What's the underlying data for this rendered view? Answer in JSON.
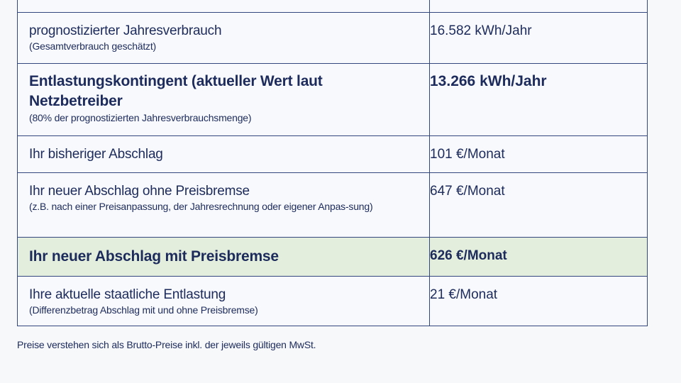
{
  "rows": [
    {
      "label": "prognostizierter Jahresverbrauch",
      "note": "(Gesamtverbrauch geschätzt)",
      "value": "16.582 kWh/Jahr"
    },
    {
      "label": "Entlastungskontingent (aktueller Wert laut Netzbetreiber",
      "note": "(80% der prognostizierten Jahresverbrauchsmenge)",
      "value": "13.266 kWh/Jahr"
    },
    {
      "label": "Ihr bisheriger Abschlag",
      "value": "101 €/Monat"
    },
    {
      "label": "Ihr neuer Abschlag ohne Preisbremse",
      "note": "(z.B. nach einer Preisanpassung, der Jahresrechnung oder eigener Anpas-sung)",
      "value": "647 €/Monat"
    },
    {
      "label": "Ihr neuer Abschlag mit Preisbremse",
      "value": "626 €/Monat"
    },
    {
      "label": "Ihre aktuelle staatliche Entlastung",
      "note": "(Differenzbetrag Abschlag mit und ohne Preisbremse)",
      "value": "21 €/Monat"
    }
  ],
  "colors": {
    "text": "#1c2b5c",
    "border": "#34467e",
    "highlight": "#e4eedc"
  },
  "footer": "Preise verstehen sich als Brutto-Preise inkl. der jeweils gültigen MwSt."
}
